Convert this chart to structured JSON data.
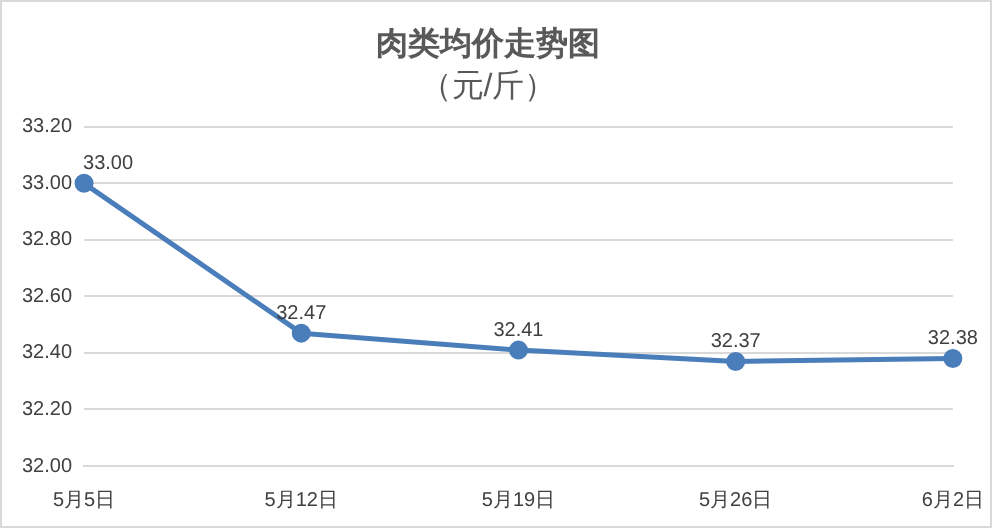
{
  "chart_data": {
    "type": "line",
    "title": "肉类均价走势图",
    "subtitle": "（元/斤）",
    "categories": [
      "5月5日",
      "5月12日",
      "5月19日",
      "5月26日",
      "6月2日"
    ],
    "series": [
      {
        "color": "#4a7ebb",
        "values": [
          33.0,
          32.47,
          32.41,
          32.37,
          32.38
        ]
      }
    ],
    "value_labels": [
      "33.00",
      "32.47",
      "32.41",
      "32.37",
      "32.38"
    ],
    "ylim": [
      32,
      33.2
    ],
    "yticks": [
      {
        "value": 32,
        "label": "32.00"
      },
      {
        "value": 32.2,
        "label": "32.20"
      },
      {
        "value": 32.4,
        "label": "32.40"
      },
      {
        "value": 32.6,
        "label": "32.60"
      },
      {
        "value": 32.8,
        "label": "32.80"
      },
      {
        "value": 33,
        "label": "33.00"
      },
      {
        "value": 33.2,
        "label": "33.20"
      }
    ],
    "grid": "y",
    "legend": false,
    "marker": "circle",
    "line_style": "solid"
  }
}
